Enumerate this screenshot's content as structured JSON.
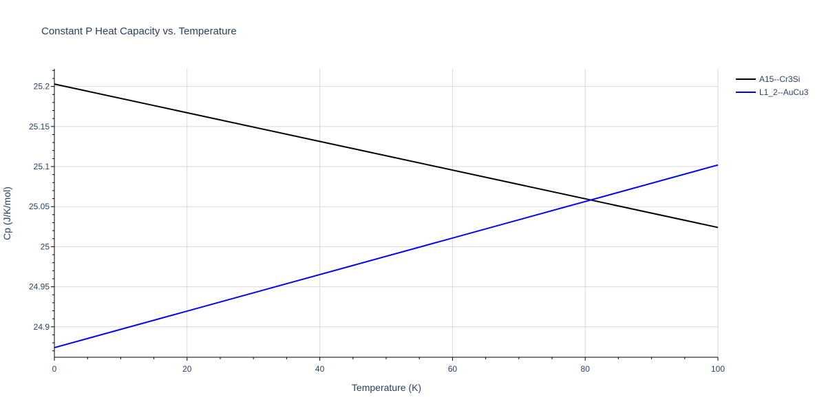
{
  "chart_data": {
    "type": "line",
    "title": "Constant P Heat Capacity vs. Temperature",
    "xlabel": "Temperature (K)",
    "ylabel": "Cp (J/K/mol)",
    "xlim": [
      0,
      100
    ],
    "ylim": [
      24.862,
      25.222
    ],
    "x_ticks": [
      0,
      20,
      40,
      60,
      80,
      100
    ],
    "x_tick_labels": [
      "0",
      "20",
      "40",
      "60",
      "80",
      "100"
    ],
    "y_ticks": [
      24.9,
      24.95,
      25,
      25.05,
      25.1,
      25.15,
      25.2
    ],
    "y_tick_labels": [
      "24.9",
      "24.95",
      "25",
      "25.05",
      "25.1",
      "25.15",
      "25.2"
    ],
    "grid": true,
    "legend_position": "top-right",
    "series": [
      {
        "name": "A15--Cr3Si",
        "color": "#000000",
        "x": [
          0,
          100
        ],
        "y": [
          25.203,
          25.024
        ]
      },
      {
        "name": "L1_2--AuCu3",
        "color": "#0000ff",
        "x": [
          0,
          100
        ],
        "y": [
          24.874,
          25.102
        ]
      }
    ]
  }
}
